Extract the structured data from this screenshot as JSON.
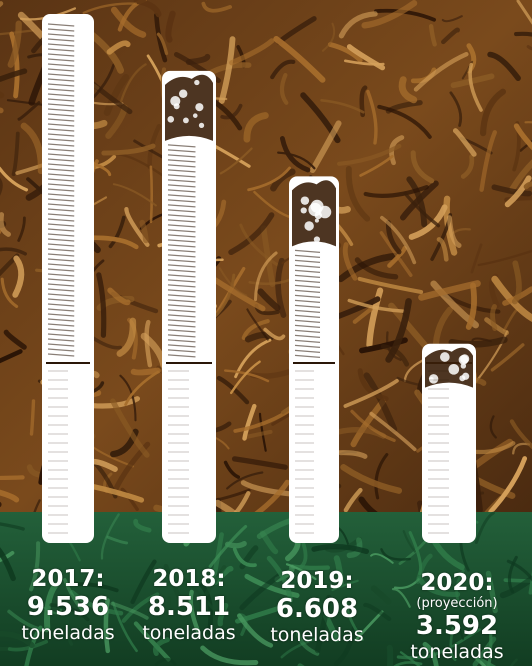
{
  "colors": {
    "tobacco_dark": "#3a200c",
    "tobacco_mid": "#8a5a24",
    "tobacco_light": "#c58e45",
    "green_band": "#1d5230",
    "cigarette": "#ffffff"
  },
  "chart_data": {
    "type": "bar",
    "unit_label": "toneladas",
    "categories": [
      "2017:",
      "2018:",
      "2019:",
      "2020:"
    ],
    "values": [
      9536,
      8511,
      6608,
      3592
    ],
    "value_labels": [
      "9.536",
      "8.511",
      "6.608",
      "3.592"
    ],
    "notes": [
      "",
      "",
      "",
      "(proyección)"
    ],
    "bar_style": "cigarette"
  }
}
